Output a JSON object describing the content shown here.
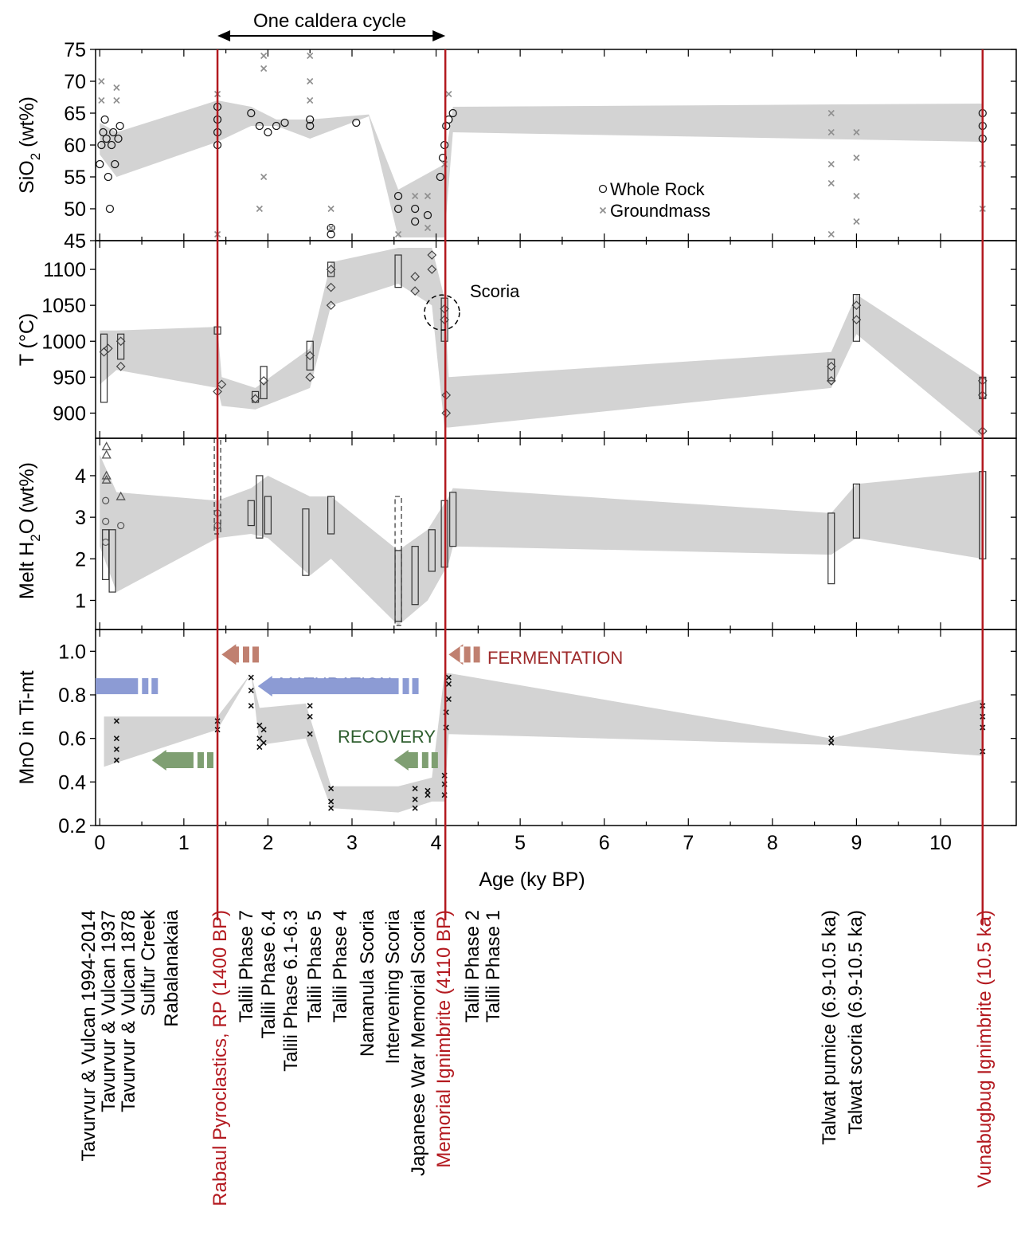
{
  "chart_data": {
    "type": "scatter",
    "xlabel": "Age (ky BP)",
    "xlim": [
      -0.05,
      10.9
    ],
    "xticks": [
      0,
      1,
      2,
      3,
      4,
      5,
      6,
      7,
      8,
      9,
      10
    ],
    "top_annotation": "One caldera cycle",
    "cycle_span": [
      1.4,
      4.11
    ],
    "caldera_events": [
      1.4,
      4.11,
      10.5
    ],
    "panels": [
      {
        "id": "sio2",
        "ylabel": "SiO2 (wt%)",
        "ylabel_main": "SiO",
        "ylabel_sub": "2",
        "ylabel_tail": " (wt%)",
        "ylim": [
          45,
          75
        ],
        "yticks": [
          45,
          50,
          55,
          60,
          65,
          70,
          75
        ],
        "band": [
          [
            0,
            58.5,
            63.5
          ],
          [
            0.2,
            55,
            62
          ],
          [
            1.4,
            60.5,
            67
          ],
          [
            1.8,
            63,
            66
          ],
          [
            2.1,
            63,
            64
          ],
          [
            2.5,
            61,
            64
          ],
          [
            3.2,
            64.5,
            64.8
          ],
          [
            3.55,
            45.5,
            53
          ],
          [
            4.1,
            45.5,
            57
          ],
          [
            4.2,
            62,
            66
          ],
          [
            10.5,
            60.5,
            66.5
          ]
        ],
        "legend": [
          "Whole Rock",
          "Groundmass"
        ],
        "whole_rock": [
          [
            0,
            57
          ],
          [
            0.02,
            60
          ],
          [
            0.04,
            62
          ],
          [
            0.06,
            64
          ],
          [
            0.08,
            61
          ],
          [
            0.1,
            55
          ],
          [
            0.12,
            50
          ],
          [
            0.14,
            60
          ],
          [
            0.16,
            62
          ],
          [
            0.18,
            57
          ],
          [
            0.22,
            61
          ],
          [
            0.24,
            63
          ],
          [
            1.4,
            60
          ],
          [
            1.4,
            62
          ],
          [
            1.4,
            64
          ],
          [
            1.4,
            66
          ],
          [
            1.8,
            65
          ],
          [
            1.9,
            63
          ],
          [
            2.0,
            62
          ],
          [
            2.1,
            63
          ],
          [
            2.2,
            63.5
          ],
          [
            2.5,
            63
          ],
          [
            2.5,
            64
          ],
          [
            2.75,
            46
          ],
          [
            2.75,
            47
          ],
          [
            3.05,
            63.5
          ],
          [
            3.55,
            50
          ],
          [
            3.55,
            52
          ],
          [
            3.75,
            48
          ],
          [
            3.75,
            50
          ],
          [
            3.9,
            49
          ],
          [
            4.05,
            55
          ],
          [
            4.08,
            58
          ],
          [
            4.1,
            60
          ],
          [
            4.12,
            63
          ],
          [
            4.15,
            64
          ],
          [
            4.2,
            65
          ],
          [
            10.5,
            61
          ],
          [
            10.5,
            63
          ],
          [
            10.5,
            65
          ]
        ],
        "groundmass": [
          [
            0.02,
            67
          ],
          [
            0.02,
            70
          ],
          [
            0.2,
            67
          ],
          [
            0.2,
            69
          ],
          [
            1.4,
            46
          ],
          [
            1.4,
            68
          ],
          [
            1.9,
            50
          ],
          [
            1.95,
            55
          ],
          [
            1.95,
            72
          ],
          [
            1.95,
            74
          ],
          [
            2.5,
            67
          ],
          [
            2.5,
            70
          ],
          [
            2.5,
            74
          ],
          [
            2.75,
            47
          ],
          [
            2.75,
            50
          ],
          [
            3.55,
            46
          ],
          [
            3.75,
            52
          ],
          [
            3.9,
            47
          ],
          [
            3.9,
            52
          ],
          [
            4.1,
            57
          ],
          [
            4.15,
            68
          ],
          [
            8.7,
            46
          ],
          [
            8.7,
            54
          ],
          [
            8.7,
            57
          ],
          [
            8.7,
            62
          ],
          [
            8.7,
            65
          ],
          [
            9.0,
            48
          ],
          [
            9.0,
            52
          ],
          [
            9.0,
            58
          ],
          [
            9.0,
            62
          ],
          [
            10.5,
            50
          ],
          [
            10.5,
            57
          ]
        ]
      },
      {
        "id": "temp",
        "ylabel": "T (°C)",
        "ylim": [
          865,
          1140
        ],
        "yticks": [
          900,
          950,
          1000,
          1050,
          1100
        ],
        "band": [
          [
            0,
            940,
            1015
          ],
          [
            0.2,
            960,
            1015
          ],
          [
            1.4,
            935,
            1020
          ],
          [
            1.45,
            910,
            950
          ],
          [
            1.85,
            905,
            935
          ],
          [
            2.5,
            935,
            990
          ],
          [
            2.75,
            1050,
            1110
          ],
          [
            3.55,
            1080,
            1130
          ],
          [
            3.95,
            1050,
            1130
          ],
          [
            4.1,
            880,
            1060
          ],
          [
            4.15,
            880,
            950
          ],
          [
            8.7,
            935,
            985
          ],
          [
            9.0,
            1010,
            1065
          ],
          [
            10.5,
            865,
            950
          ]
        ],
        "annotation": "Scoria",
        "annotation_at": [
          4.07,
          1040
        ],
        "rect_symbols": [
          [
            0.05,
            915,
            1010
          ],
          [
            0.25,
            975,
            1010
          ],
          [
            1.4,
            1010,
            1020
          ],
          [
            1.85,
            915,
            930
          ],
          [
            1.95,
            920,
            965
          ],
          [
            2.5,
            960,
            1000
          ],
          [
            2.75,
            1090,
            1110
          ],
          [
            3.55,
            1075,
            1120
          ],
          [
            4.1,
            1000,
            1060
          ],
          [
            8.7,
            945,
            975
          ],
          [
            9.0,
            1000,
            1065
          ],
          [
            10.5,
            920,
            950
          ]
        ],
        "points": [
          [
            0.05,
            985
          ],
          [
            0.1,
            990
          ],
          [
            0.25,
            965
          ],
          [
            0.25,
            1000
          ],
          [
            1.4,
            930
          ],
          [
            1.45,
            940
          ],
          [
            1.85,
            920
          ],
          [
            1.95,
            945
          ],
          [
            2.5,
            950
          ],
          [
            2.5,
            980
          ],
          [
            2.75,
            1050
          ],
          [
            2.75,
            1075
          ],
          [
            2.75,
            1100
          ],
          [
            3.75,
            1070
          ],
          [
            3.75,
            1090
          ],
          [
            3.95,
            1100
          ],
          [
            3.95,
            1120
          ],
          [
            4.1,
            1030
          ],
          [
            4.1,
            1045
          ],
          [
            4.12,
            900
          ],
          [
            4.12,
            925
          ],
          [
            8.7,
            945
          ],
          [
            8.7,
            965
          ],
          [
            9.0,
            1030
          ],
          [
            9.0,
            1050
          ],
          [
            10.5,
            875
          ],
          [
            10.5,
            925
          ],
          [
            10.5,
            945
          ]
        ]
      },
      {
        "id": "h2o",
        "ylabel": "Melt H2O (wt%)",
        "ylabel_main": "Melt H",
        "ylabel_sub": "2",
        "ylabel_tail": "O (wt%)",
        "ylim": [
          0.3,
          4.9
        ],
        "yticks": [
          1,
          2,
          3,
          4
        ],
        "band": [
          [
            0,
            2.3,
            4.5
          ],
          [
            0.2,
            1.2,
            3.6
          ],
          [
            1.4,
            2.5,
            3.4
          ],
          [
            1.8,
            2.6,
            3.7
          ],
          [
            2.0,
            2.5,
            4.0
          ],
          [
            2.5,
            1.6,
            3.5
          ],
          [
            2.75,
            2.0,
            3.5
          ],
          [
            3.55,
            0.4,
            2.2
          ],
          [
            3.9,
            1.0,
            2.7
          ],
          [
            4.15,
            1.9,
            3.5
          ],
          [
            4.2,
            2.3,
            3.7
          ],
          [
            8.7,
            2.1,
            3.1
          ],
          [
            9.0,
            2.5,
            3.8
          ],
          [
            10.5,
            2.0,
            4.1
          ]
        ],
        "rect_symbols": [
          [
            0.07,
            1.5,
            2.7
          ],
          [
            0.15,
            1.2,
            2.7
          ],
          [
            1.8,
            2.8,
            3.4
          ],
          [
            1.9,
            2.5,
            4.0
          ],
          [
            2.0,
            2.6,
            3.5
          ],
          [
            2.45,
            1.6,
            3.2
          ],
          [
            2.75,
            2.6,
            3.5
          ],
          [
            3.55,
            0.5,
            2.2
          ],
          [
            3.75,
            0.9,
            2.3
          ],
          [
            3.95,
            1.7,
            2.7
          ],
          [
            4.1,
            1.8,
            3.4
          ],
          [
            4.2,
            2.3,
            3.6
          ],
          [
            8.7,
            1.4,
            3.1
          ],
          [
            9.0,
            2.5,
            3.8
          ],
          [
            10.5,
            2.0,
            4.1
          ]
        ],
        "dashed_symbols": [
          [
            1.4,
            2.6,
            5.0
          ],
          [
            3.55,
            0.4,
            3.5
          ]
        ],
        "triangles": [
          [
            0.08,
            4.7
          ],
          [
            0.08,
            4.5
          ],
          [
            0.08,
            4.0
          ],
          [
            0.08,
            3.9
          ],
          [
            0.25,
            3.5
          ]
        ],
        "circles": [
          [
            0.07,
            2.4
          ],
          [
            0.07,
            2.9
          ],
          [
            0.07,
            3.4
          ],
          [
            0.25,
            2.8
          ],
          [
            1.4,
            2.8
          ],
          [
            1.4,
            3.1
          ]
        ]
      },
      {
        "id": "mno",
        "ylabel": "MnO in Ti-mt",
        "ylim": [
          0.2,
          1.1
        ],
        "yticks": [
          0.2,
          0.4,
          0.6,
          0.8,
          1.0
        ],
        "band": [
          [
            0.05,
            0.47,
            0.7
          ],
          [
            1.4,
            0.64,
            0.7
          ],
          [
            1.8,
            0.9,
            0.9
          ],
          [
            1.9,
            0.57,
            0.74
          ],
          [
            2.45,
            0.6,
            0.76
          ],
          [
            2.75,
            0.28,
            0.38
          ],
          [
            3.55,
            0.26,
            0.38
          ],
          [
            3.95,
            0.31,
            0.42
          ],
          [
            4.1,
            0.31,
            0.9
          ],
          [
            4.15,
            0.62,
            0.9
          ],
          [
            8.7,
            0.57,
            0.6
          ],
          [
            10.5,
            0.52,
            0.78
          ]
        ],
        "points": [
          [
            0.2,
            0.5
          ],
          [
            0.2,
            0.55
          ],
          [
            0.2,
            0.6
          ],
          [
            0.2,
            0.68
          ],
          [
            1.4,
            0.64
          ],
          [
            1.4,
            0.68
          ],
          [
            1.8,
            0.75
          ],
          [
            1.8,
            0.82
          ],
          [
            1.8,
            0.88
          ],
          [
            1.9,
            0.56
          ],
          [
            1.9,
            0.6
          ],
          [
            1.9,
            0.66
          ],
          [
            1.95,
            0.58
          ],
          [
            1.95,
            0.64
          ],
          [
            2.5,
            0.62
          ],
          [
            2.5,
            0.7
          ],
          [
            2.5,
            0.75
          ],
          [
            2.75,
            0.28
          ],
          [
            2.75,
            0.31
          ],
          [
            2.75,
            0.37
          ],
          [
            3.75,
            0.28
          ],
          [
            3.75,
            0.32
          ],
          [
            3.75,
            0.37
          ],
          [
            3.9,
            0.34
          ],
          [
            3.9,
            0.36
          ],
          [
            4.1,
            0.34
          ],
          [
            4.1,
            0.39
          ],
          [
            4.1,
            0.43
          ],
          [
            4.12,
            0.65
          ],
          [
            4.12,
            0.72
          ],
          [
            4.15,
            0.78
          ],
          [
            4.15,
            0.85
          ],
          [
            4.15,
            0.88
          ],
          [
            8.7,
            0.58
          ],
          [
            8.7,
            0.6
          ],
          [
            10.5,
            0.54
          ],
          [
            10.5,
            0.65
          ],
          [
            10.5,
            0.7
          ],
          [
            10.5,
            0.75
          ]
        ],
        "phases": [
          {
            "label": "FERMENTATION",
            "color": "#9e2a2b",
            "arrow_color": "#c08070",
            "y": 0.985
          },
          {
            "label": "MATURATION",
            "color": "#3b4fa0",
            "arrow_color": "#8c9bd4",
            "y": 0.84
          },
          {
            "label": "RECOVERY",
            "color": "#2e5e2e",
            "arrow_color": "#7f9f72",
            "y": 0.5
          }
        ]
      }
    ],
    "units": [
      {
        "label": "Tavurvur & Vulcan 1994-2014",
        "x": 0.0,
        "highlight": false
      },
      {
        "label": "Tavurvur & Vulcan 1937",
        "x": 0.09,
        "highlight": false
      },
      {
        "label": "Tavurvur & Vulcan 1878",
        "x": 0.2,
        "highlight": false
      },
      {
        "label": "Sulfur Creek",
        "x": 0.5,
        "highlight": false
      },
      {
        "label": "Rabalanakaia",
        "x": 0.8,
        "highlight": false
      },
      {
        "label": "Rabaul Pyroclastics, RP (1400 BP)",
        "x": 1.4,
        "highlight": true
      },
      {
        "label": "Talili Phase 7",
        "x": 1.73,
        "highlight": false
      },
      {
        "label": "Talili Phase 6.4",
        "x": 1.98,
        "highlight": false
      },
      {
        "label": "Talili Phase 6.1-6.3",
        "x": 2.22,
        "highlight": false
      },
      {
        "label": "Talili Phase 5",
        "x": 2.5,
        "highlight": false
      },
      {
        "label": "Talili Phase 4",
        "x": 2.78,
        "highlight": false
      },
      {
        "label": "Namanula Scoria",
        "x": 3.1,
        "highlight": false
      },
      {
        "label": "Intervening Scoria",
        "x": 3.42,
        "highlight": false
      },
      {
        "label": "Japanese War Memorial Scoria",
        "x": 3.74,
        "highlight": false
      },
      {
        "label": "Memorial Ignimbrite (4110 BP)",
        "x": 4.05,
        "highlight": true
      },
      {
        "label": "Talili Phase 2",
        "x": 4.36,
        "highlight": false
      },
      {
        "label": "Talili Phase 1",
        "x": 4.62,
        "highlight": false
      },
      {
        "label": "Talwat pumice (6.9-10.5 ka)",
        "x": 8.69,
        "highlight": false
      },
      {
        "label": "Talwat scoria (6.9-10.5 ka)",
        "x": 9.05,
        "highlight": false
      },
      {
        "label": "Vunabugbug Ignimbrite (10.5 ka)",
        "x": 10.5,
        "highlight": true
      }
    ]
  },
  "colors": {
    "band": "#d3d3d3",
    "event_line": "#b3191f",
    "event_text": "#b3191f",
    "point_dark": "#1a1a1a",
    "point_grey": "#8f8f8f"
  }
}
